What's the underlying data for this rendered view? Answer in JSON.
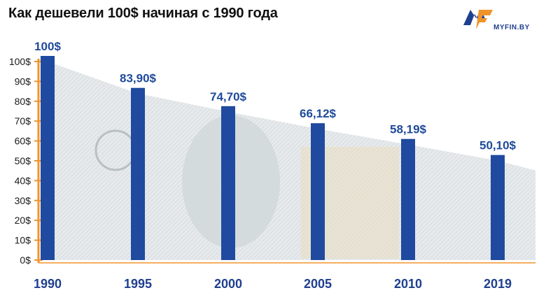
{
  "header": {
    "title": "Как дешевели 100$ начиная с 1990 года",
    "logo_text": "MYFIN.BY"
  },
  "colors": {
    "bar": "#1f4a9f",
    "label": "#1f4a9a",
    "axis_orange": "#f0932b",
    "banknote": "#9aa3a8"
  },
  "chart_data": {
    "type": "bar",
    "title": "Как дешевели 100$ начиная с 1990 года",
    "xlabel": "",
    "ylabel": "",
    "categories": [
      "1990",
      "1995",
      "2000",
      "2005",
      "2010",
      "2019"
    ],
    "values": [
      100,
      83.9,
      74.7,
      66.12,
      58.19,
      50.1
    ],
    "value_labels": [
      "100$",
      "83,90$",
      "74,70$",
      "66,12$",
      "58,19$",
      "50,10$"
    ],
    "ylim": [
      0,
      100
    ],
    "ytick_labels": [
      "0$",
      "10$",
      "20$",
      "30$",
      "40$",
      "50$",
      "60$",
      "70$",
      "80$",
      "90$",
      "100$"
    ],
    "grid": false,
    "legend": "none"
  }
}
